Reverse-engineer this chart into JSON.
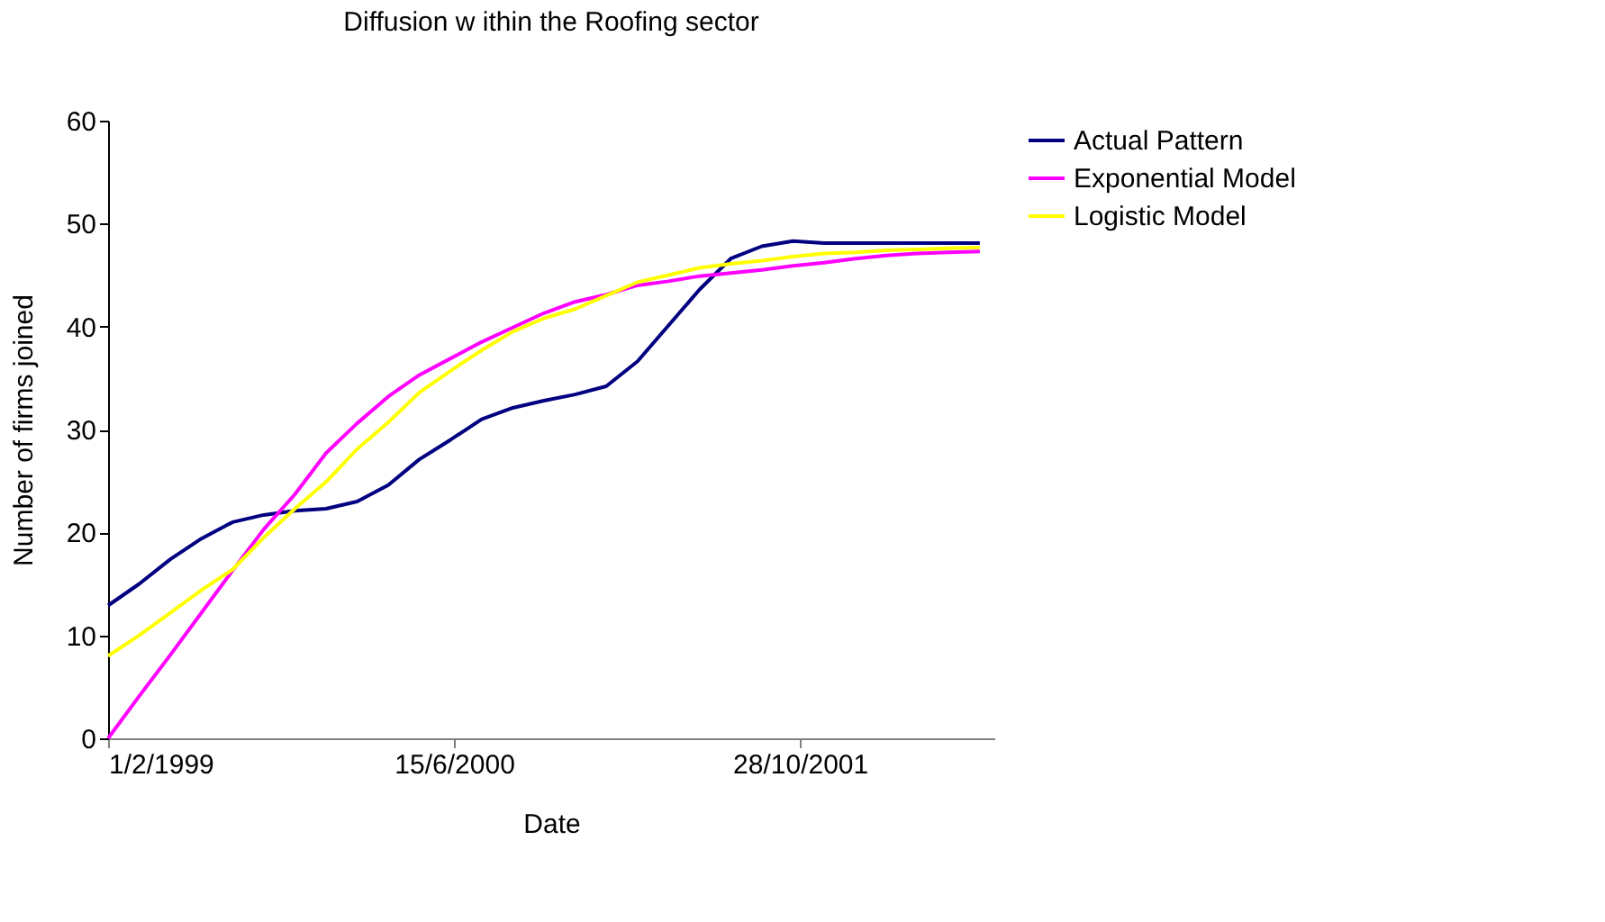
{
  "chart_data": {
    "type": "line",
    "title": "Diffusion w ithin the Roofing sector",
    "xlabel": "Date",
    "ylabel": "Number of firms joined",
    "x": [
      "1999-02-01",
      "1999-03-18",
      "1999-05-02",
      "1999-06-16",
      "1999-07-31",
      "1999-09-14",
      "1999-10-29",
      "1999-12-13",
      "2000-01-27",
      "2000-03-12",
      "2000-04-26",
      "2000-06-10",
      "2000-07-25",
      "2000-09-08",
      "2000-10-23",
      "2000-12-07",
      "2001-01-21",
      "2001-03-07",
      "2001-04-21",
      "2001-06-05",
      "2001-07-20",
      "2001-09-03",
      "2001-10-18",
      "2001-12-02",
      "2002-01-16",
      "2002-03-02",
      "2002-04-16",
      "2002-05-31",
      "2002-07-15"
    ],
    "series": [
      {
        "name": "Actual Pattern",
        "color": "#000080",
        "values": [
          12.9,
          15.0,
          17.4,
          19.4,
          21.0,
          21.7,
          22.1,
          22.3,
          23.0,
          24.6,
          27.1,
          29.0,
          31.0,
          32.1,
          32.8,
          33.4,
          34.2,
          36.6,
          40.1,
          43.6,
          46.6,
          47.8,
          48.3,
          48.1,
          48.1,
          48.1,
          48.1,
          48.1,
          48.1
        ]
      },
      {
        "name": "Exponential Model",
        "color": "#ff00ff",
        "values": [
          0,
          4.1,
          8.1,
          12.2,
          16.3,
          20.3,
          23.7,
          27.7,
          30.6,
          33.2,
          35.3,
          36.9,
          38.5,
          39.9,
          41.3,
          42.4,
          43.1,
          44.0,
          44.4,
          44.9,
          45.2,
          45.5,
          45.9,
          46.2,
          46.6,
          46.9,
          47.1,
          47.2,
          47.3
        ]
      },
      {
        "name": "Logistic Model",
        "color": "#ffff00",
        "values": [
          8.0,
          10.0,
          12.2,
          14.4,
          16.4,
          19.5,
          22.3,
          24.9,
          28.1,
          30.7,
          33.6,
          35.7,
          37.7,
          39.5,
          40.8,
          41.7,
          43.0,
          44.3,
          45.0,
          45.7,
          46.1,
          46.4,
          46.8,
          47.1,
          47.2,
          47.4,
          47.5,
          47.6,
          47.7
        ]
      }
    ],
    "xlim": [
      "1999-02-01",
      "2002-08-05"
    ],
    "xticks": [
      {
        "value": "1999-02-01",
        "label": "1/2/1999"
      },
      {
        "value": "2000-06-15",
        "label": "15/6/2000"
      },
      {
        "value": "2001-10-28",
        "label": "28/10/2001"
      }
    ],
    "ylim": [
      0,
      60
    ],
    "yticks": [
      0,
      10,
      20,
      30,
      40,
      50,
      60
    ],
    "grid": false,
    "legend": "right",
    "line_style": "solid",
    "marker": "none"
  }
}
